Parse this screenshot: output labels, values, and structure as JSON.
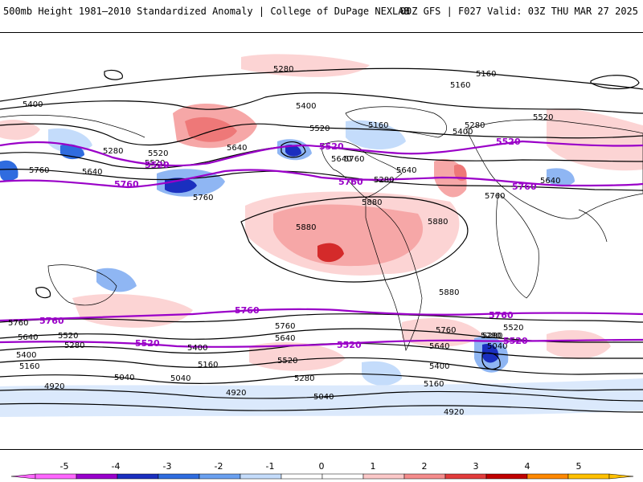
{
  "header": {
    "title": "500mb Height 1981–2010 Standardized Anomaly | College of DuPage NEXLAB",
    "run_info": "00Z GFS | F027 Valid: 03Z THU MAR 27 2025"
  },
  "contour_labels": {
    "north": [
      "5280",
      "5160",
      "5160",
      "5400",
      "5400",
      "5520",
      "5160",
      "5280",
      "5520",
      "5400",
      "5280",
      "5520",
      "5640",
      "5280",
      "5520",
      "5640",
      "5760",
      "5640",
      "5760",
      "5880",
      "5880",
      "5880",
      "5880",
      "5640",
      "5760",
      "5760",
      "5640"
    ],
    "south": [
      "5760",
      "5640",
      "5520",
      "5400",
      "5280",
      "5160",
      "5040",
      "4920",
      "5400",
      "5280",
      "5520",
      "5640",
      "5760",
      "5400",
      "5160",
      "5040",
      "4920",
      "5280",
      "5160",
      "5040",
      "4920",
      "5640",
      "5760",
      "5520",
      "5280",
      "5040"
    ],
    "purple": [
      "5520",
      "5520",
      "5520",
      "5760",
      "5760",
      "5760",
      "5760",
      "5760",
      "5760",
      "5520",
      "5520",
      "5520"
    ]
  },
  "colorbar": {
    "ticks": [
      "-5",
      "-4",
      "-3",
      "-2",
      "-1",
      "0",
      "1",
      "2",
      "3",
      "4",
      "5"
    ],
    "colors": [
      "#ff66ff",
      "#9900cc",
      "#1a2fbf",
      "#2f6cdf",
      "#6aa0f0",
      "#c4dcfb",
      "#ffffff",
      "#ffffff",
      "#fbc8c8",
      "#f58c8c",
      "#e23c3c",
      "#c00000",
      "#ff8800",
      "#ffc000"
    ]
  },
  "colors": {
    "purple_contour": "#9a00c8",
    "black_contour": "#000000",
    "anomaly_pos": "#f0a0a0",
    "anomaly_neg": "#7aa6f0"
  }
}
